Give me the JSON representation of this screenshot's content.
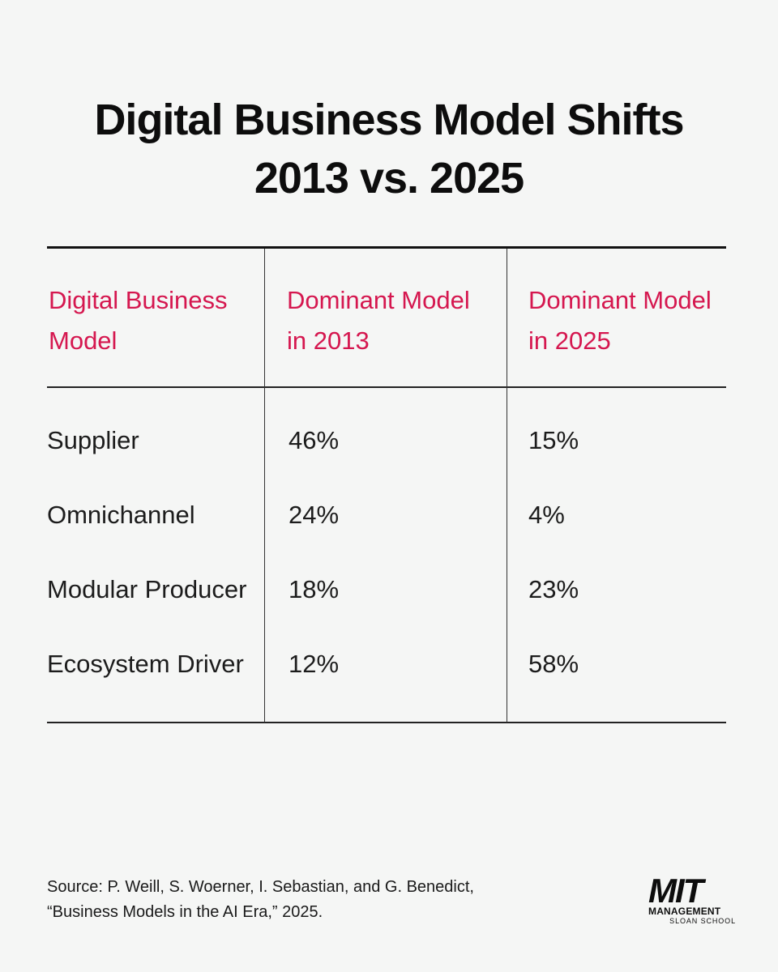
{
  "title": {
    "line1": "Digital Business Model Shifts",
    "line2": "2013 vs. 2025"
  },
  "table": {
    "headers": [
      {
        "line1": "Digital Business",
        "line2": "Model"
      },
      {
        "line1": "Dominant Model",
        "line2": "in 2013"
      },
      {
        "line1": "Dominant Model",
        "line2": "in 2025"
      }
    ],
    "rows": [
      {
        "model": "Supplier",
        "y2013": "46%",
        "y2025": "15%"
      },
      {
        "model": "Omnichannel",
        "y2013": "24%",
        "y2025": "4%"
      },
      {
        "model": "Modular Producer",
        "y2013": "18%",
        "y2025": "23%"
      },
      {
        "model": "Ecosystem Driver",
        "y2013": "12%",
        "y2025": "58%"
      }
    ]
  },
  "source": {
    "line1": "Source: P. Weill, S. Woerner, I. Sebastian, and G. Benedict,",
    "line2": "“Business Models in the AI Era,” 2025."
  },
  "logo": {
    "mit": "MIT",
    "management": "MANAGEMENT",
    "sloan": "SLOAN SCHOOL"
  },
  "colors": {
    "accent": "#d5174f",
    "background": "#f5f6f5",
    "text": "#1f1f1f"
  }
}
